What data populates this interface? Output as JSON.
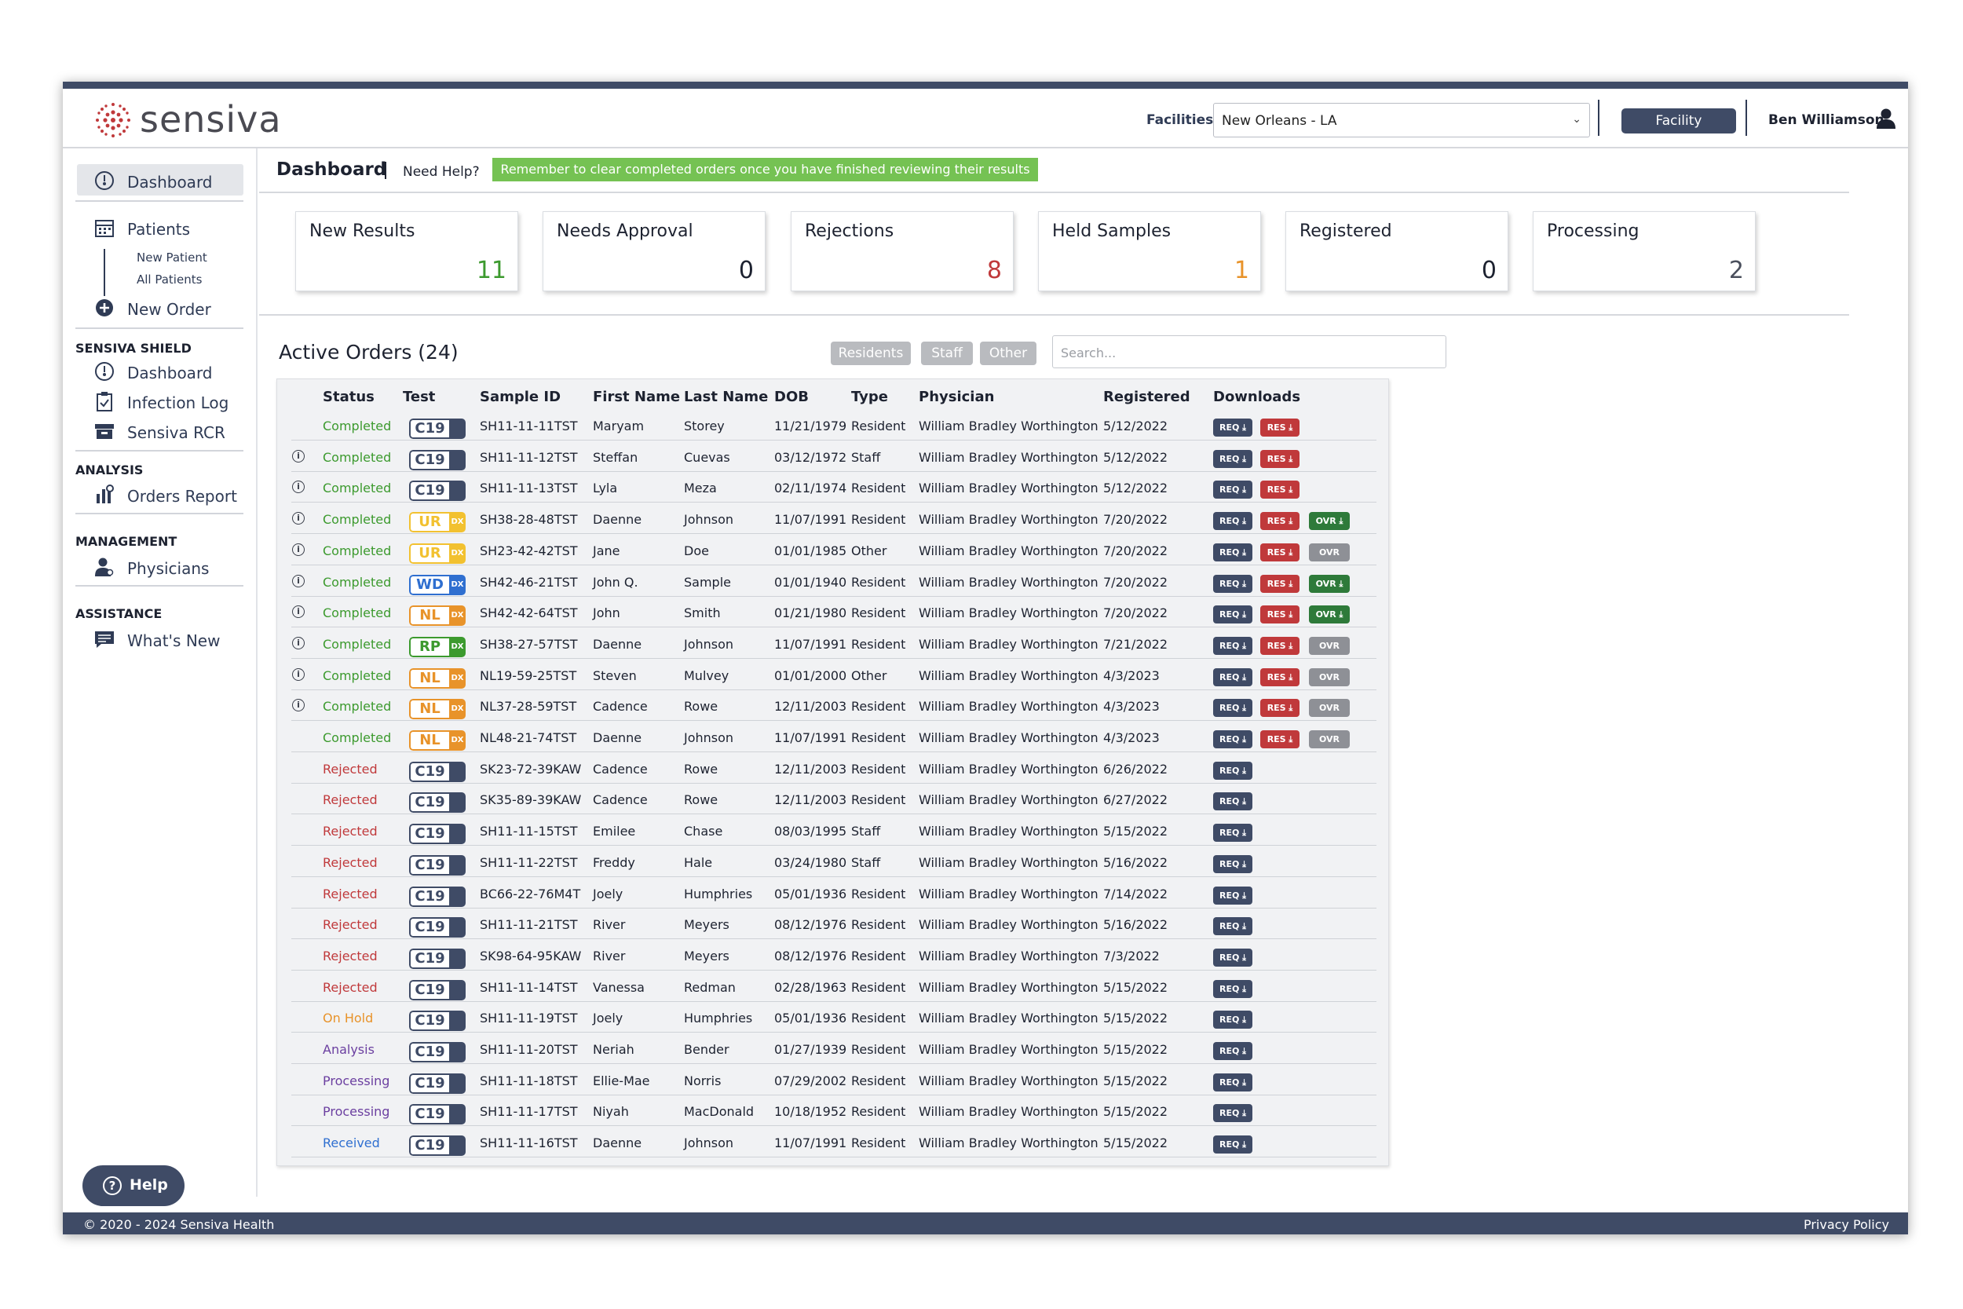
{
  "brand": {
    "name": "sensiva"
  },
  "header": {
    "facilities_label": "Facilities",
    "facility_selected": "New Orleans - LA",
    "facility_button": "Facility",
    "user_name": "Ben Williamson"
  },
  "sidebar": {
    "dashboard": "Dashboard",
    "patients": "Patients",
    "new_patient": "New Patient",
    "all_patients": "All Patients",
    "new_order": "New Order",
    "shield_heading": "SENSIVA SHIELD",
    "shield_dashboard": "Dashboard",
    "infection_log": "Infection Log",
    "sensiva_rcr": "Sensiva RCR",
    "analysis_heading": "ANALYSIS",
    "orders_report": "Orders Report",
    "management_heading": "MANAGEMENT",
    "physicians": "Physicians",
    "assistance_heading": "ASSISTANCE",
    "whats_new": "What's New",
    "help": "Help"
  },
  "main": {
    "title": "Dashboard",
    "need_help": "Need Help?",
    "notice": "Remember to clear completed orders once you have finished reviewing their results"
  },
  "cards": [
    {
      "title": "New Results",
      "value": "11",
      "color": "#3c9a2e"
    },
    {
      "title": "Needs Approval",
      "value": "0",
      "color": "#1d2230"
    },
    {
      "title": "Rejections",
      "value": "8",
      "color": "#c0393b"
    },
    {
      "title": "Held Samples",
      "value": "1",
      "color": "#e8932a"
    },
    {
      "title": "Registered",
      "value": "0",
      "color": "#1d2230"
    },
    {
      "title": "Processing",
      "value": "2",
      "color": "#4a4f5c"
    }
  ],
  "orders": {
    "title": "Active Orders (24)",
    "filters": [
      "Residents",
      "Staff",
      "Other"
    ],
    "search_placeholder": "Search...",
    "columns": [
      "Status",
      "Test",
      "Sample ID",
      "First Name",
      "Last Name",
      "DOB",
      "Type",
      "Physician",
      "Registered",
      "Downloads"
    ],
    "rows": [
      {
        "info": false,
        "status": "Completed",
        "test": "C19",
        "test_sub": "",
        "sample_id": "SH11-11-11TST",
        "first": "Maryam",
        "last": "Storey",
        "dob": "11/21/1979",
        "type": "Resident",
        "physician": "William Bradley Worthington",
        "registered": "5/12/2022",
        "res": true,
        "ovr": ""
      },
      {
        "info": true,
        "status": "Completed",
        "test": "C19",
        "test_sub": "",
        "sample_id": "SH11-11-12TST",
        "first": "Steffan",
        "last": "Cuevas",
        "dob": "03/12/1972",
        "type": "Staff",
        "physician": "William Bradley Worthington",
        "registered": "5/12/2022",
        "res": true,
        "ovr": ""
      },
      {
        "info": true,
        "status": "Completed",
        "test": "C19",
        "test_sub": "",
        "sample_id": "SH11-11-13TST",
        "first": "Lyla",
        "last": "Meza",
        "dob": "02/11/1974",
        "type": "Resident",
        "physician": "William Bradley Worthington",
        "registered": "5/12/2022",
        "res": true,
        "ovr": ""
      },
      {
        "info": true,
        "status": "Completed",
        "test": "UR",
        "test_sub": "DX",
        "sample_id": "SH38-28-48TST",
        "first": "Daenne",
        "last": "Johnson",
        "dob": "11/07/1991",
        "type": "Resident",
        "physician": "William Bradley Worthington",
        "registered": "7/20/2022",
        "res": true,
        "ovr": "green"
      },
      {
        "info": true,
        "status": "Completed",
        "test": "UR",
        "test_sub": "DX",
        "sample_id": "SH23-42-42TST",
        "first": "Jane",
        "last": "Doe",
        "dob": "01/01/1985",
        "type": "Other",
        "physician": "William Bradley Worthington",
        "registered": "7/20/2022",
        "res": true,
        "ovr": "gray"
      },
      {
        "info": true,
        "status": "Completed",
        "test": "WD",
        "test_sub": "DX",
        "sample_id": "SH42-46-21TST",
        "first": "John Q.",
        "last": "Sample",
        "dob": "01/01/1940",
        "type": "Resident",
        "physician": "William Bradley Worthington",
        "registered": "7/20/2022",
        "res": true,
        "ovr": "green"
      },
      {
        "info": true,
        "status": "Completed",
        "test": "NL",
        "test_sub": "DX",
        "sample_id": "SH42-42-64TST",
        "first": "John",
        "last": "Smith",
        "dob": "01/21/1980",
        "type": "Resident",
        "physician": "William Bradley Worthington",
        "registered": "7/20/2022",
        "res": true,
        "ovr": "green"
      },
      {
        "info": true,
        "status": "Completed",
        "test": "RP",
        "test_sub": "DX",
        "sample_id": "SH38-27-57TST",
        "first": "Daenne",
        "last": "Johnson",
        "dob": "11/07/1991",
        "type": "Resident",
        "physician": "William Bradley Worthington",
        "registered": "7/21/2022",
        "res": true,
        "ovr": "gray"
      },
      {
        "info": true,
        "status": "Completed",
        "test": "NL",
        "test_sub": "DX",
        "sample_id": "NL19-59-25TST",
        "first": "Steven",
        "last": "Mulvey",
        "dob": "01/01/2000",
        "type": "Other",
        "physician": "William Bradley Worthington",
        "registered": "4/3/2023",
        "res": true,
        "ovr": "gray"
      },
      {
        "info": true,
        "status": "Completed",
        "test": "NL",
        "test_sub": "DX",
        "sample_id": "NL37-28-59TST",
        "first": "Cadence",
        "last": "Rowe",
        "dob": "12/11/2003",
        "type": "Resident",
        "physician": "William Bradley Worthington",
        "registered": "4/3/2023",
        "res": true,
        "ovr": "gray"
      },
      {
        "info": false,
        "status": "Completed",
        "test": "NL",
        "test_sub": "DX",
        "sample_id": "NL48-21-74TST",
        "first": "Daenne",
        "last": "Johnson",
        "dob": "11/07/1991",
        "type": "Resident",
        "physician": "William Bradley Worthington",
        "registered": "4/3/2023",
        "res": true,
        "ovr": "gray"
      },
      {
        "info": false,
        "status": "Rejected",
        "test": "C19",
        "test_sub": "",
        "sample_id": "SK23-72-39KAW",
        "first": "Cadence",
        "last": "Rowe",
        "dob": "12/11/2003",
        "type": "Resident",
        "physician": "William Bradley Worthington",
        "registered": "6/26/2022",
        "res": false,
        "ovr": ""
      },
      {
        "info": false,
        "status": "Rejected",
        "test": "C19",
        "test_sub": "",
        "sample_id": "SK35-89-39KAW",
        "first": "Cadence",
        "last": "Rowe",
        "dob": "12/11/2003",
        "type": "Resident",
        "physician": "William Bradley Worthington",
        "registered": "6/27/2022",
        "res": false,
        "ovr": ""
      },
      {
        "info": false,
        "status": "Rejected",
        "test": "C19",
        "test_sub": "",
        "sample_id": "SH11-11-15TST",
        "first": "Emilee",
        "last": "Chase",
        "dob": "08/03/1995",
        "type": "Staff",
        "physician": "William Bradley Worthington",
        "registered": "5/15/2022",
        "res": false,
        "ovr": ""
      },
      {
        "info": false,
        "status": "Rejected",
        "test": "C19",
        "test_sub": "",
        "sample_id": "SH11-11-22TST",
        "first": "Freddy",
        "last": "Hale",
        "dob": "03/24/1980",
        "type": "Staff",
        "physician": "William Bradley Worthington",
        "registered": "5/16/2022",
        "res": false,
        "ovr": ""
      },
      {
        "info": false,
        "status": "Rejected",
        "test": "C19",
        "test_sub": "",
        "sample_id": "BC66-22-76M4T",
        "first": "Joely",
        "last": "Humphries",
        "dob": "05/01/1936",
        "type": "Resident",
        "physician": "William Bradley Worthington",
        "registered": "7/14/2022",
        "res": false,
        "ovr": ""
      },
      {
        "info": false,
        "status": "Rejected",
        "test": "C19",
        "test_sub": "",
        "sample_id": "SH11-11-21TST",
        "first": "River",
        "last": "Meyers",
        "dob": "08/12/1976",
        "type": "Resident",
        "physician": "William Bradley Worthington",
        "registered": "5/16/2022",
        "res": false,
        "ovr": ""
      },
      {
        "info": false,
        "status": "Rejected",
        "test": "C19",
        "test_sub": "",
        "sample_id": "SK98-64-95KAW",
        "first": "River",
        "last": "Meyers",
        "dob": "08/12/1976",
        "type": "Resident",
        "physician": "William Bradley Worthington",
        "registered": "7/3/2022",
        "res": false,
        "ovr": ""
      },
      {
        "info": false,
        "status": "Rejected",
        "test": "C19",
        "test_sub": "",
        "sample_id": "SH11-11-14TST",
        "first": "Vanessa",
        "last": "Redman",
        "dob": "02/28/1963",
        "type": "Resident",
        "physician": "William Bradley Worthington",
        "registered": "5/15/2022",
        "res": false,
        "ovr": ""
      },
      {
        "info": false,
        "status": "On Hold",
        "test": "C19",
        "test_sub": "",
        "sample_id": "SH11-11-19TST",
        "first": "Joely",
        "last": "Humphries",
        "dob": "05/01/1936",
        "type": "Resident",
        "physician": "William Bradley Worthington",
        "registered": "5/15/2022",
        "res": false,
        "ovr": ""
      },
      {
        "info": false,
        "status": "Analysis",
        "test": "C19",
        "test_sub": "",
        "sample_id": "SH11-11-20TST",
        "first": "Neriah",
        "last": "Bender",
        "dob": "01/27/1939",
        "type": "Resident",
        "physician": "William Bradley Worthington",
        "registered": "5/15/2022",
        "res": false,
        "ovr": ""
      },
      {
        "info": false,
        "status": "Processing",
        "test": "C19",
        "test_sub": "",
        "sample_id": "SH11-11-18TST",
        "first": "Ellie-Mae",
        "last": "Norris",
        "dob": "07/29/2002",
        "type": "Resident",
        "physician": "William Bradley Worthington",
        "registered": "5/15/2022",
        "res": false,
        "ovr": ""
      },
      {
        "info": false,
        "status": "Processing",
        "test": "C19",
        "test_sub": "",
        "sample_id": "SH11-11-17TST",
        "first": "Niyah",
        "last": "MacDonald",
        "dob": "10/18/1952",
        "type": "Resident",
        "physician": "William Bradley Worthington",
        "registered": "5/15/2022",
        "res": false,
        "ovr": ""
      },
      {
        "info": false,
        "status": "Received",
        "test": "C19",
        "test_sub": "",
        "sample_id": "SH11-11-16TST",
        "first": "Daenne",
        "last": "Johnson",
        "dob": "11/07/1991",
        "type": "Resident",
        "physician": "William Bradley Worthington",
        "registered": "5/15/2022",
        "res": false,
        "ovr": ""
      }
    ],
    "download_labels": {
      "req": "REQ ⤓",
      "res": "RES ⤓",
      "ovr": "OVR ⤓",
      "ovr_disabled": "OVR"
    }
  },
  "colors": {
    "status": {
      "Completed": "#3c9a2e",
      "Rejected": "#c0393b",
      "On Hold": "#e8932a",
      "Analysis": "#6b3fa0",
      "Processing": "#6b3fa0",
      "Received": "#2f6fd0"
    },
    "tests": {
      "C19": "#3f4b66",
      "UR": "#f2c130",
      "WD": "#2f6fd0",
      "NL": "#e8932a",
      "RP": "#3c9a2e"
    },
    "req": "#3f4b66",
    "res": "#c0393b",
    "ovr_green": "#2e7a3a",
    "ovr_gray": "#8e9096"
  },
  "footer": {
    "copyright": "© 2020 - 2024  Sensiva Health",
    "privacy": "Privacy Policy"
  }
}
